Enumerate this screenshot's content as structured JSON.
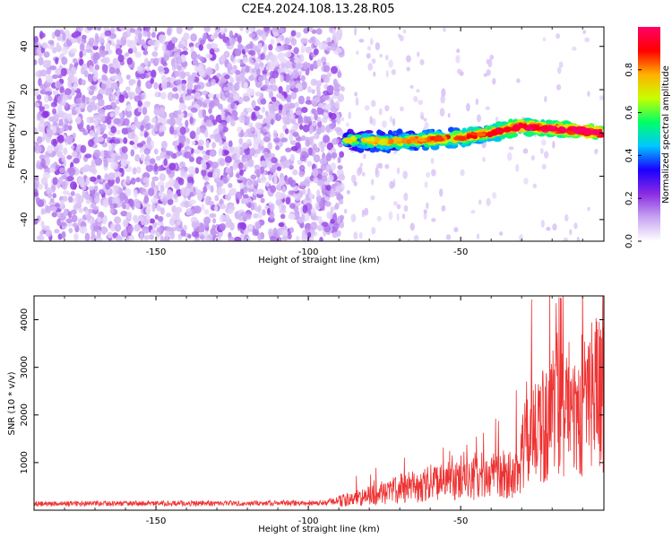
{
  "title": "C2E4.2024.108.13.28.R05",
  "chart_data": [
    {
      "type": "heatmap",
      "xlabel": "Height of straight line (km)",
      "ylabel": "Frequency (Hz)",
      "xlim": [
        -190,
        -3
      ],
      "ylim": [
        -50,
        49
      ],
      "xticks": [
        -150,
        -100,
        -50
      ],
      "yticks": [
        -40,
        -20,
        0,
        20,
        40
      ],
      "noise_region_x": [
        -190,
        -89
      ],
      "signal_track": [
        {
          "x": -88,
          "f": -3
        },
        {
          "x": -75,
          "f": -4
        },
        {
          "x": -60,
          "f": -3
        },
        {
          "x": -50,
          "f": -2
        },
        {
          "x": -40,
          "f": 0
        },
        {
          "x": -30,
          "f": 3
        },
        {
          "x": -20,
          "f": 2
        },
        {
          "x": -10,
          "f": 1
        },
        {
          "x": -4,
          "f": 0
        }
      ],
      "colorbar": {
        "label": "Normalized spectral amplitude",
        "range": [
          0,
          1
        ],
        "ticks": [
          0.0,
          0.2,
          0.4,
          0.6,
          0.8
        ],
        "tick_labels": [
          "0.0",
          "0.2",
          "0.4",
          "0.6",
          "0.8"
        ],
        "colors": [
          "#ffffff",
          "#c7a4f2",
          "#8a2be2",
          "#1a00ff",
          "#00c8ff",
          "#00ff66",
          "#c8ff00",
          "#ffb000",
          "#ff0000",
          "#ff0066"
        ]
      }
    },
    {
      "type": "line",
      "xlabel": "Height of straight line (km)",
      "ylabel": "SNR (10 * v/v)",
      "xlim": [
        -190,
        -3
      ],
      "ylim": [
        0,
        4500
      ],
      "xticks": [
        -150,
        -100,
        -50
      ],
      "yticks": [
        1000,
        2000,
        3000,
        4000
      ],
      "color": "#ee3333",
      "envelope": [
        {
          "x": -190,
          "snr": 150
        },
        {
          "x": -95,
          "snr": 170
        },
        {
          "x": -88,
          "snr": 260
        },
        {
          "x": -80,
          "snr": 380
        },
        {
          "x": -70,
          "snr": 560
        },
        {
          "x": -60,
          "snr": 700
        },
        {
          "x": -50,
          "snr": 760
        },
        {
          "x": -40,
          "snr": 880
        },
        {
          "x": -32,
          "snr": 1000
        },
        {
          "x": -28,
          "snr": 1900
        },
        {
          "x": -22,
          "snr": 2300
        },
        {
          "x": -18,
          "snr": 2800
        },
        {
          "x": -12,
          "snr": 2700
        },
        {
          "x": -6,
          "snr": 3100
        },
        {
          "x": -3,
          "snr": 2900
        }
      ]
    }
  ]
}
